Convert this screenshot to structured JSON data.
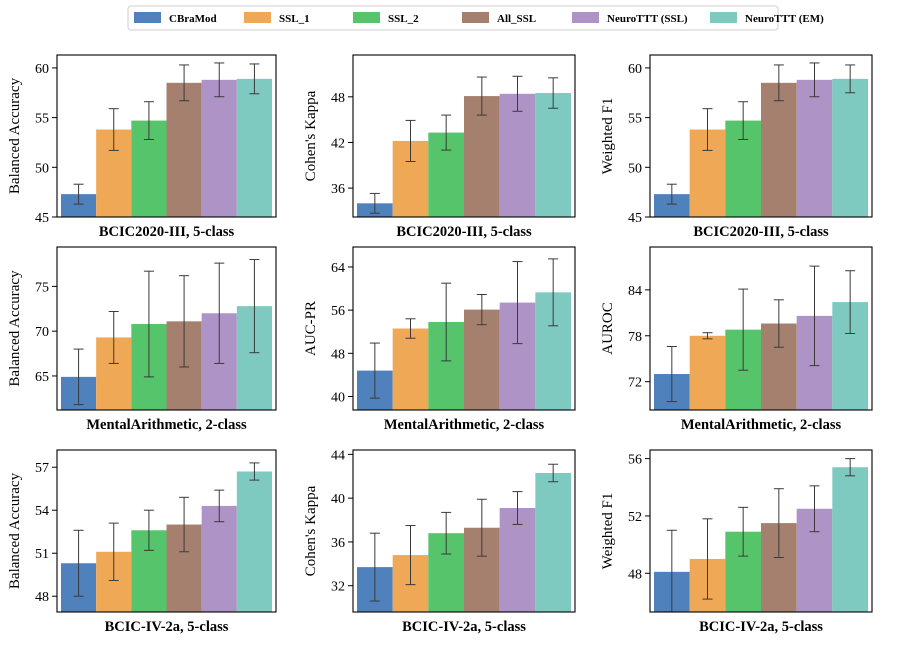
{
  "legend": [
    {
      "name": "CBraMod",
      "color": "#4F81BD"
    },
    {
      "name": "SSL_1",
      "color": "#EFA855"
    },
    {
      "name": "SSL_2",
      "color": "#55C46A"
    },
    {
      "name": "All_SSL",
      "color": "#A6806F"
    },
    {
      "name": "NeuroTTT (SSL)",
      "color": "#AE93C7"
    },
    {
      "name": "NeuroTTT (EM)",
      "color": "#7ECAC0"
    }
  ],
  "chart_data": [
    {
      "type": "bar",
      "ylabel": "Balanced Accuracy",
      "xlabel": "BCIC2020-III, 5-class",
      "ylim": [
        45,
        61.3
      ],
      "yticks": [
        45,
        50,
        55,
        60
      ],
      "series": [
        {
          "name": "CBraMod",
          "values": [
            47.3
          ],
          "err": [
            1.0
          ]
        },
        {
          "name": "SSL_1",
          "values": [
            53.8
          ],
          "err": [
            2.1
          ]
        },
        {
          "name": "SSL_2",
          "values": [
            54.7
          ],
          "err": [
            1.9
          ]
        },
        {
          "name": "All_SSL",
          "values": [
            58.5
          ],
          "err": [
            1.8
          ]
        },
        {
          "name": "NeuroTTT (SSL)",
          "values": [
            58.8
          ],
          "err": [
            1.7
          ]
        },
        {
          "name": "NeuroTTT (EM)",
          "values": [
            58.9
          ],
          "err": [
            1.5
          ]
        }
      ]
    },
    {
      "type": "bar",
      "ylabel": "Cohen's Kappa",
      "xlabel": "BCIC2020-III, 5-class",
      "ylim": [
        32.2,
        53.5
      ],
      "yticks": [
        36,
        42,
        48
      ],
      "series": [
        {
          "name": "CBraMod",
          "values": [
            34.0
          ],
          "err": [
            1.3
          ]
        },
        {
          "name": "SSL_1",
          "values": [
            42.2
          ],
          "err": [
            2.7
          ]
        },
        {
          "name": "SSL_2",
          "values": [
            43.3
          ],
          "err": [
            2.3
          ]
        },
        {
          "name": "All_SSL",
          "values": [
            48.1
          ],
          "err": [
            2.5
          ]
        },
        {
          "name": "NeuroTTT (SSL)",
          "values": [
            48.4
          ],
          "err": [
            2.3
          ]
        },
        {
          "name": "NeuroTTT (EM)",
          "values": [
            48.5
          ],
          "err": [
            2.0
          ]
        }
      ]
    },
    {
      "type": "bar",
      "ylabel": "Weighted F1",
      "xlabel": "BCIC2020-III, 5-class",
      "ylim": [
        45,
        61.3
      ],
      "yticks": [
        45,
        50,
        55,
        60
      ],
      "series": [
        {
          "name": "CBraMod",
          "values": [
            47.3
          ],
          "err": [
            1.0
          ]
        },
        {
          "name": "SSL_1",
          "values": [
            53.8
          ],
          "err": [
            2.1
          ]
        },
        {
          "name": "SSL_2",
          "values": [
            54.7
          ],
          "err": [
            1.9
          ]
        },
        {
          "name": "All_SSL",
          "values": [
            58.5
          ],
          "err": [
            1.8
          ]
        },
        {
          "name": "NeuroTTT (SSL)",
          "values": [
            58.8
          ],
          "err": [
            1.7
          ]
        },
        {
          "name": "NeuroTTT (EM)",
          "values": [
            58.9
          ],
          "err": [
            1.4
          ]
        }
      ]
    },
    {
      "type": "bar",
      "ylabel": "Balanced Accuracy",
      "xlabel": "MentalArithmetic, 2-class",
      "ylim": [
        61.2,
        79.4
      ],
      "yticks": [
        65,
        70,
        75
      ],
      "series": [
        {
          "name": "CBraMod",
          "values": [
            64.9
          ],
          "err": [
            3.1
          ]
        },
        {
          "name": "SSL_1",
          "values": [
            69.3
          ],
          "err": [
            2.9
          ]
        },
        {
          "name": "SSL_2",
          "values": [
            70.8
          ],
          "err": [
            5.9
          ]
        },
        {
          "name": "All_SSL",
          "values": [
            71.1
          ],
          "err": [
            5.1
          ]
        },
        {
          "name": "NeuroTTT (SSL)",
          "values": [
            72.0
          ],
          "err": [
            5.6
          ]
        },
        {
          "name": "NeuroTTT (EM)",
          "values": [
            72.8
          ],
          "err": [
            5.2
          ]
        }
      ]
    },
    {
      "type": "bar",
      "ylabel": "AUC-PR",
      "xlabel": "MentalArithmetic, 2-class",
      "ylim": [
        37.5,
        67.7
      ],
      "yticks": [
        40,
        48,
        56,
        64
      ],
      "series": [
        {
          "name": "CBraMod",
          "values": [
            44.8
          ],
          "err": [
            5.1
          ]
        },
        {
          "name": "SSL_1",
          "values": [
            52.6
          ],
          "err": [
            1.8
          ]
        },
        {
          "name": "SSL_2",
          "values": [
            53.8
          ],
          "err": [
            7.2
          ]
        },
        {
          "name": "All_SSL",
          "values": [
            56.1
          ],
          "err": [
            2.8
          ]
        },
        {
          "name": "NeuroTTT (SSL)",
          "values": [
            57.4
          ],
          "err": [
            7.6
          ]
        },
        {
          "name": "NeuroTTT (EM)",
          "values": [
            59.3
          ],
          "err": [
            6.2
          ]
        }
      ]
    },
    {
      "type": "bar",
      "ylabel": "AUROC",
      "xlabel": "MentalArithmetic, 2-class",
      "ylim": [
        68.3,
        89.6
      ],
      "yticks": [
        72,
        78,
        84
      ],
      "series": [
        {
          "name": "CBraMod",
          "values": [
            73.0
          ],
          "err": [
            3.6
          ]
        },
        {
          "name": "SSL_1",
          "values": [
            78.0
          ],
          "err": [
            0.4
          ]
        },
        {
          "name": "SSL_2",
          "values": [
            78.8
          ],
          "err": [
            5.3
          ]
        },
        {
          "name": "All_SSL",
          "values": [
            79.6
          ],
          "err": [
            3.1
          ]
        },
        {
          "name": "NeuroTTT (SSL)",
          "values": [
            80.6
          ],
          "err": [
            6.5
          ]
        },
        {
          "name": "NeuroTTT (EM)",
          "values": [
            82.4
          ],
          "err": [
            4.1
          ]
        }
      ]
    },
    {
      "type": "bar",
      "ylabel": "Balanced Accuracy",
      "xlabel": "BCIC-IV-2a, 5-class",
      "ylim": [
        46.9,
        58.2
      ],
      "yticks": [
        48,
        51,
        54,
        57
      ],
      "series": [
        {
          "name": "CBraMod",
          "values": [
            50.3
          ],
          "err": [
            2.3
          ]
        },
        {
          "name": "SSL_1",
          "values": [
            51.1
          ],
          "err": [
            2.0
          ]
        },
        {
          "name": "SSL_2",
          "values": [
            52.6
          ],
          "err": [
            1.4
          ]
        },
        {
          "name": "All_SSL",
          "values": [
            53.0
          ],
          "err": [
            1.9
          ]
        },
        {
          "name": "NeuroTTT (SSL)",
          "values": [
            54.3
          ],
          "err": [
            1.1
          ]
        },
        {
          "name": "NeuroTTT (EM)",
          "values": [
            56.7
          ],
          "err": [
            0.6
          ]
        }
      ]
    },
    {
      "type": "bar",
      "ylabel": "Cohen's Kappa",
      "xlabel": "BCIC-IV-2a, 5-class",
      "ylim": [
        29.6,
        44.4
      ],
      "yticks": [
        32,
        36,
        40,
        44
      ],
      "series": [
        {
          "name": "CBraMod",
          "values": [
            33.7
          ],
          "err": [
            3.1
          ]
        },
        {
          "name": "SSL_1",
          "values": [
            34.8
          ],
          "err": [
            2.7
          ]
        },
        {
          "name": "SSL_2",
          "values": [
            36.8
          ],
          "err": [
            1.9
          ]
        },
        {
          "name": "All_SSL",
          "values": [
            37.3
          ],
          "err": [
            2.6
          ]
        },
        {
          "name": "NeuroTTT (SSL)",
          "values": [
            39.1
          ],
          "err": [
            1.5
          ]
        },
        {
          "name": "NeuroTTT (EM)",
          "values": [
            42.3
          ],
          "err": [
            0.8
          ]
        }
      ]
    },
    {
      "type": "bar",
      "ylabel": "Weighted F1",
      "xlabel": "BCIC-IV-2a, 5-class",
      "ylim": [
        45.3,
        56.6
      ],
      "yticks": [
        48,
        52,
        56
      ],
      "series": [
        {
          "name": "CBraMod",
          "values": [
            48.1
          ],
          "err": [
            2.9
          ]
        },
        {
          "name": "SSL_1",
          "values": [
            49.0
          ],
          "err": [
            2.8
          ]
        },
        {
          "name": "SSL_2",
          "values": [
            50.9
          ],
          "err": [
            1.7
          ]
        },
        {
          "name": "All_SSL",
          "values": [
            51.5
          ],
          "err": [
            2.4
          ]
        },
        {
          "name": "NeuroTTT (SSL)",
          "values": [
            52.5
          ],
          "err": [
            1.6
          ]
        },
        {
          "name": "NeuroTTT (EM)",
          "values": [
            55.4
          ],
          "err": [
            0.6
          ]
        }
      ]
    }
  ]
}
